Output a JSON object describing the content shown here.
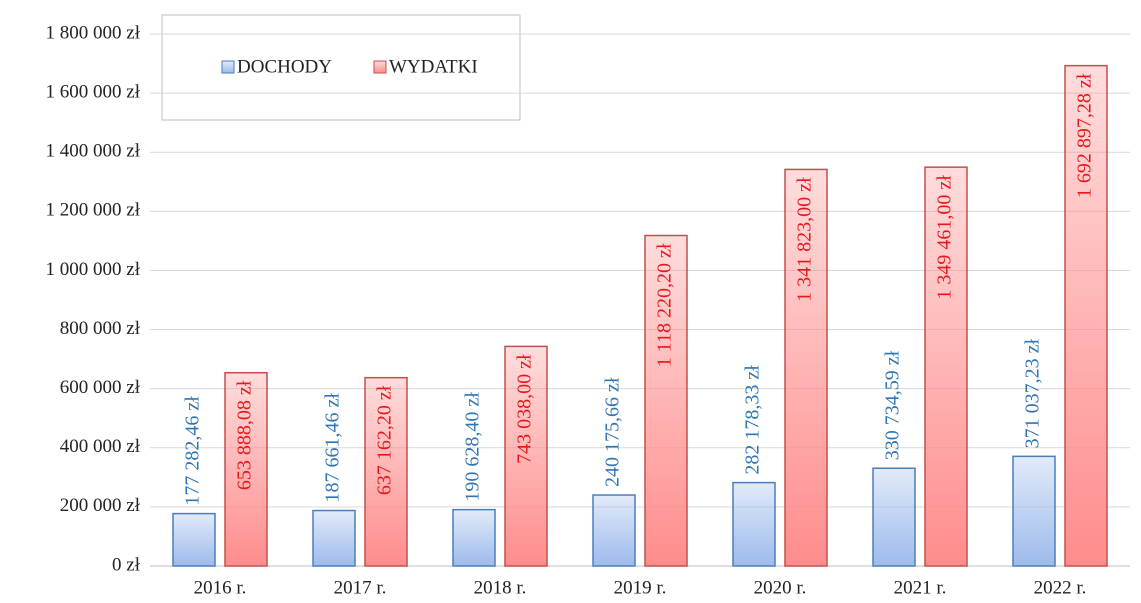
{
  "chart_data": {
    "type": "bar",
    "categories": [
      "2016 r.",
      "2017 r.",
      "2018 r.",
      "2019 r.",
      "2020 r.",
      "2021 r.",
      "2022 r."
    ],
    "series": [
      {
        "name": "DOCHODY",
        "color": "#9dbbec",
        "values": [
          177282.46,
          187661.46,
          190628.4,
          240175.66,
          282178.33,
          330734.59,
          371037.23
        ],
        "value_labels": [
          "177 282,46 zł",
          "187 661,46 zł",
          "190 628,40 zł",
          "240 175,66 zł",
          "282 178,33 zł",
          "330 734,59 zł",
          "371 037,23 zł"
        ]
      },
      {
        "name": "WYDATKI",
        "color": "#ff8c8c",
        "values": [
          653888.08,
          637162.2,
          743038.0,
          1118220.2,
          1341823.0,
          1349461.0,
          1692897.28
        ],
        "value_labels": [
          "653 888,08 zł",
          "637 162,20 zł",
          "743 038,00 zł",
          "1 118 220,20 zł",
          "1 341 823,00 zł",
          "1 349 461,00 zł",
          "1 692 897,28 zł"
        ]
      }
    ],
    "ylim": [
      0,
      1800000
    ],
    "yticks": [
      {
        "value": 0,
        "label": "0 zł"
      },
      {
        "value": 200000,
        "label": "200 000 zł"
      },
      {
        "value": 400000,
        "label": "400 000 zł"
      },
      {
        "value": 600000,
        "label": "600 000 zł"
      },
      {
        "value": 800000,
        "label": "800 000 zł"
      },
      {
        "value": 1000000,
        "label": "1 000 000 zł"
      },
      {
        "value": 1200000,
        "label": "1 200 000 zł"
      },
      {
        "value": 1400000,
        "label": "1 400 000 zł"
      },
      {
        "value": 1600000,
        "label": "1 600 000 zł"
      },
      {
        "value": 1800000,
        "label": "1 800 000 zł"
      }
    ],
    "grid": true
  }
}
